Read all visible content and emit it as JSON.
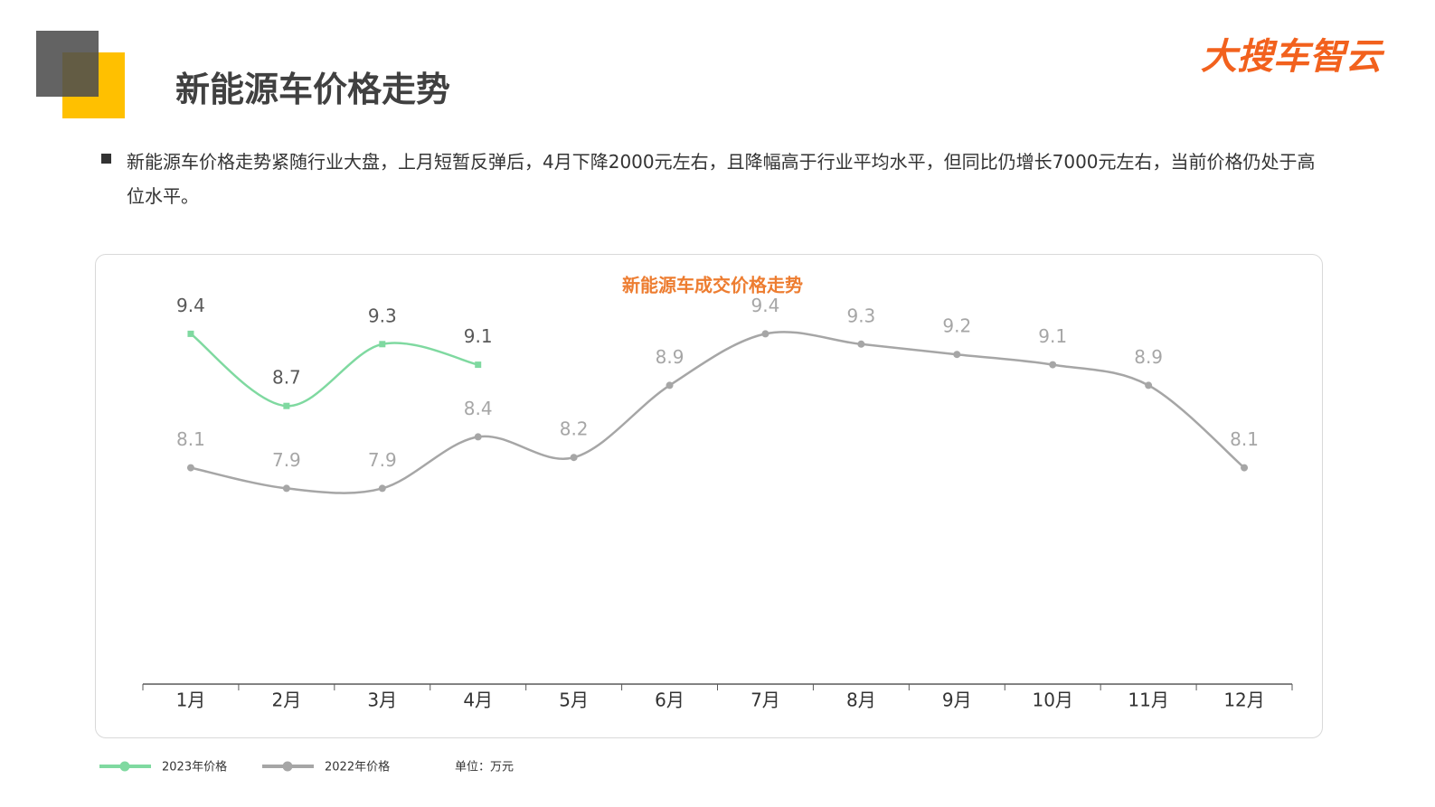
{
  "header": {
    "title": "新能源车价格走势",
    "logo": "大搜车智云"
  },
  "bullet": "新能源车价格走势紧随行业大盘，上月短暂反弹后，4月下降2000元左右，且降幅高于行业平均水平，但同比仍增长7000元左右，当前价格仍处于高位水平。",
  "chart_data": {
    "type": "line",
    "title": "新能源车成交价格走势",
    "categories": [
      "1月",
      "2月",
      "3月",
      "4月",
      "5月",
      "6月",
      "7月",
      "8月",
      "9月",
      "10月",
      "11月",
      "12月"
    ],
    "series": [
      {
        "name": "2023年价格",
        "color": "#7fd9a0",
        "label_color": "#595959",
        "values": [
          9.4,
          8.7,
          9.3,
          9.1,
          null,
          null,
          null,
          null,
          null,
          null,
          null,
          null
        ]
      },
      {
        "name": "2022年价格",
        "color": "#a6a6a6",
        "label_color": "#a6a6a6",
        "values": [
          8.1,
          7.9,
          7.9,
          8.4,
          8.2,
          8.9,
          9.4,
          9.3,
          9.2,
          9.1,
          8.9,
          8.1
        ]
      }
    ],
    "ylim": [
      6,
      9.5
    ],
    "unit": "单位：万元",
    "smooth": true
  }
}
